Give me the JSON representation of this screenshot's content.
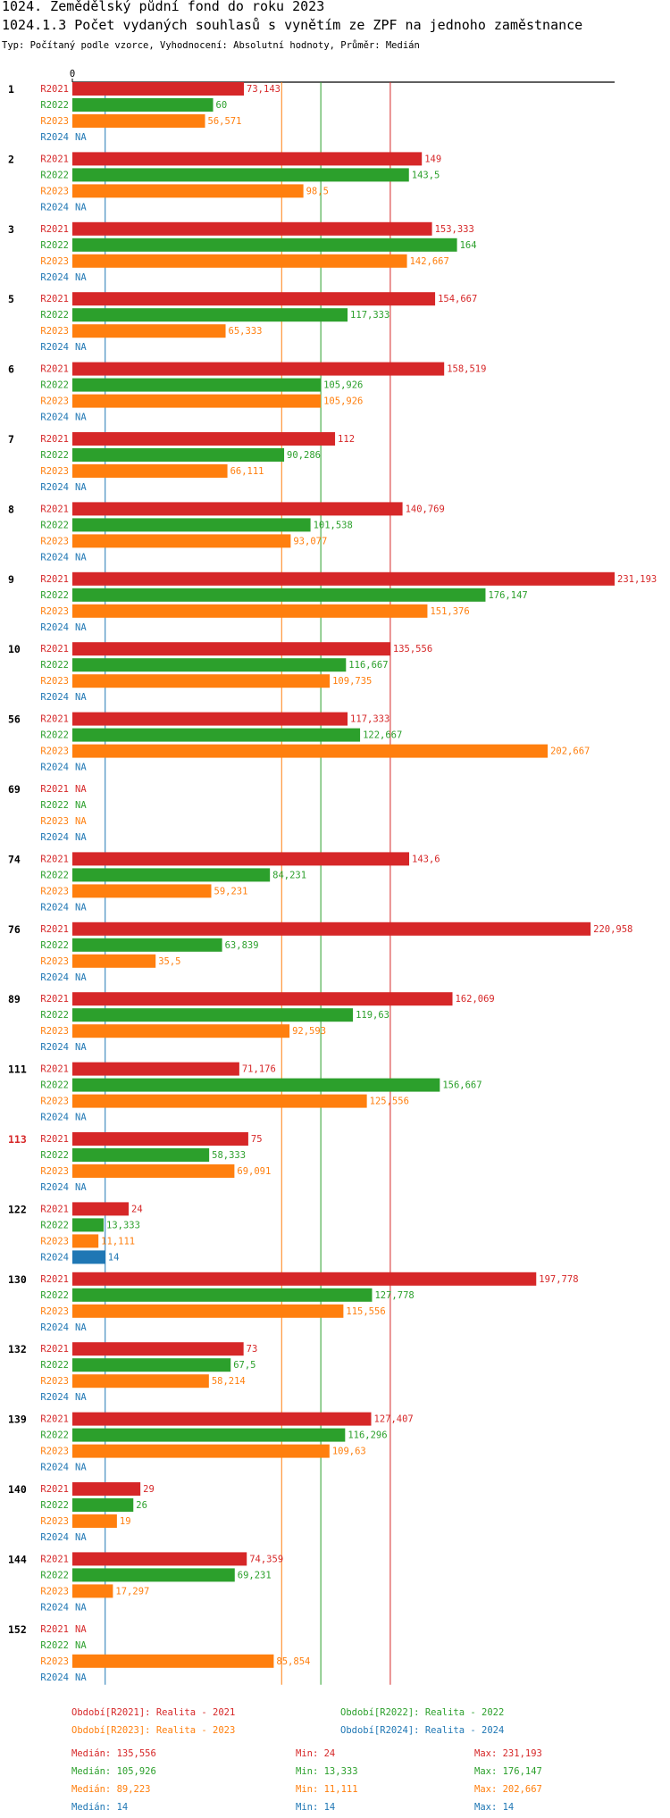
{
  "header": {
    "title1": "1024. Zemědělský půdní fond  do roku 2023",
    "title2": "1024.1.3 Počet vydaných souhlasů s vynětím ze ZPF na jednoho zaměstnance",
    "subtitle": "Typ: Počítaný podle vzorce, Vyhodnocení: Absolutní hodnoty, Průměr: Medián"
  },
  "colors": {
    "R2021": "#d62728",
    "R2022": "#2ca02c",
    "R2023": "#ff7f0e",
    "R2024": "#1f77b4",
    "highlight_group": "#d62728"
  },
  "chart_data": {
    "type": "bar",
    "orientation": "horizontal",
    "axis_zero_label": "0",
    "xlim": [
      0,
      231.193
    ],
    "series_names": [
      "R2021",
      "R2022",
      "R2023",
      "R2024"
    ],
    "groups": [
      {
        "label": "1",
        "highlight": false,
        "values": [
          73.143,
          60,
          56.571,
          null
        ],
        "labels": [
          "73,143",
          "60",
          "56,571",
          "NA"
        ]
      },
      {
        "label": "2",
        "highlight": false,
        "values": [
          149,
          143.5,
          98.5,
          null
        ],
        "labels": [
          "149",
          "143,5",
          "98,5",
          "NA"
        ]
      },
      {
        "label": "3",
        "highlight": false,
        "values": [
          153.333,
          164,
          142.667,
          null
        ],
        "labels": [
          "153,333",
          "164",
          "142,667",
          "NA"
        ]
      },
      {
        "label": "5",
        "highlight": false,
        "values": [
          154.667,
          117.333,
          65.333,
          null
        ],
        "labels": [
          "154,667",
          "117,333",
          "65,333",
          "NA"
        ]
      },
      {
        "label": "6",
        "highlight": false,
        "values": [
          158.519,
          105.926,
          105.926,
          null
        ],
        "labels": [
          "158,519",
          "105,926",
          "105,926",
          "NA"
        ]
      },
      {
        "label": "7",
        "highlight": false,
        "values": [
          112,
          90.286,
          66.111,
          null
        ],
        "labels": [
          "112",
          "90,286",
          "66,111",
          "NA"
        ]
      },
      {
        "label": "8",
        "highlight": false,
        "values": [
          140.769,
          101.538,
          93.077,
          null
        ],
        "labels": [
          "140,769",
          "101,538",
          "93,077",
          "NA"
        ]
      },
      {
        "label": "9",
        "highlight": false,
        "values": [
          231.193,
          176.147,
          151.376,
          null
        ],
        "labels": [
          "231,193",
          "176,147",
          "151,376",
          "NA"
        ]
      },
      {
        "label": "10",
        "highlight": false,
        "values": [
          135.556,
          116.667,
          109.735,
          null
        ],
        "labels": [
          "135,556",
          "116,667",
          "109,735",
          "NA"
        ]
      },
      {
        "label": "56",
        "highlight": false,
        "values": [
          117.333,
          122.667,
          202.667,
          null
        ],
        "labels": [
          "117,333",
          "122,667",
          "202,667",
          "NA"
        ]
      },
      {
        "label": "69",
        "highlight": false,
        "values": [
          null,
          null,
          null,
          null
        ],
        "labels": [
          "NA",
          "NA",
          "NA",
          "NA"
        ]
      },
      {
        "label": "74",
        "highlight": false,
        "values": [
          143.6,
          84.231,
          59.231,
          null
        ],
        "labels": [
          "143,6",
          "84,231",
          "59,231",
          "NA"
        ]
      },
      {
        "label": "76",
        "highlight": false,
        "values": [
          220.958,
          63.839,
          35.5,
          null
        ],
        "labels": [
          "220,958",
          "63,839",
          "35,5",
          "NA"
        ]
      },
      {
        "label": "89",
        "highlight": false,
        "values": [
          162.069,
          119.63,
          92.593,
          null
        ],
        "labels": [
          "162,069",
          "119,63",
          "92,593",
          "NA"
        ]
      },
      {
        "label": "111",
        "highlight": false,
        "values": [
          71.176,
          156.667,
          125.556,
          null
        ],
        "labels": [
          "71,176",
          "156,667",
          "125,556",
          "NA"
        ]
      },
      {
        "label": "113",
        "highlight": true,
        "values": [
          75,
          58.333,
          69.091,
          null
        ],
        "labels": [
          "75",
          "58,333",
          "69,091",
          "NA"
        ]
      },
      {
        "label": "122",
        "highlight": false,
        "values": [
          24,
          13.333,
          11.111,
          14
        ],
        "labels": [
          "24",
          "13,333",
          "11,111",
          "14"
        ]
      },
      {
        "label": "130",
        "highlight": false,
        "values": [
          197.778,
          127.778,
          115.556,
          null
        ],
        "labels": [
          "197,778",
          "127,778",
          "115,556",
          "NA"
        ]
      },
      {
        "label": "132",
        "highlight": false,
        "values": [
          73,
          67.5,
          58.214,
          null
        ],
        "labels": [
          "73",
          "67,5",
          "58,214",
          "NA"
        ]
      },
      {
        "label": "139",
        "highlight": false,
        "values": [
          127.407,
          116.296,
          109.63,
          null
        ],
        "labels": [
          "127,407",
          "116,296",
          "109,63",
          "NA"
        ]
      },
      {
        "label": "140",
        "highlight": false,
        "values": [
          29,
          26,
          19,
          null
        ],
        "labels": [
          "29",
          "26",
          "19",
          "NA"
        ]
      },
      {
        "label": "144",
        "highlight": false,
        "values": [
          74.359,
          69.231,
          17.297,
          null
        ],
        "labels": [
          "74,359",
          "69,231",
          "17,297",
          "NA"
        ]
      },
      {
        "label": "152",
        "highlight": false,
        "values": [
          null,
          null,
          85.854,
          null
        ],
        "labels": [
          "NA",
          "NA",
          "85,854",
          "NA"
        ]
      }
    ],
    "median_lines": [
      {
        "series": "R2021",
        "value": 135.556
      },
      {
        "series": "R2022",
        "value": 105.926
      },
      {
        "series": "R2023",
        "value": 89.223
      },
      {
        "series": "R2024",
        "value": 14
      }
    ]
  },
  "legend": {
    "items": [
      {
        "series": "R2021",
        "text": "Období[R2021]: Realita - 2021"
      },
      {
        "series": "R2022",
        "text": "Období[R2022]: Realita - 2022"
      },
      {
        "series": "R2023",
        "text": "Období[R2023]: Realita - 2023"
      },
      {
        "series": "R2024",
        "text": "Období[R2024]: Realita - 2024"
      }
    ]
  },
  "stats": [
    {
      "series": "R2021",
      "median": "Medián: 135,556",
      "min": "Min: 24",
      "max": "Max: 231,193"
    },
    {
      "series": "R2022",
      "median": "Medián: 105,926",
      "min": "Min: 13,333",
      "max": "Max: 176,147"
    },
    {
      "series": "R2023",
      "median": "Medián: 89,223",
      "min": "Min: 11,111",
      "max": "Max: 202,667"
    },
    {
      "series": "R2024",
      "median": "Medián: 14",
      "min": "Min: 14",
      "max": "Max: 14"
    }
  ]
}
